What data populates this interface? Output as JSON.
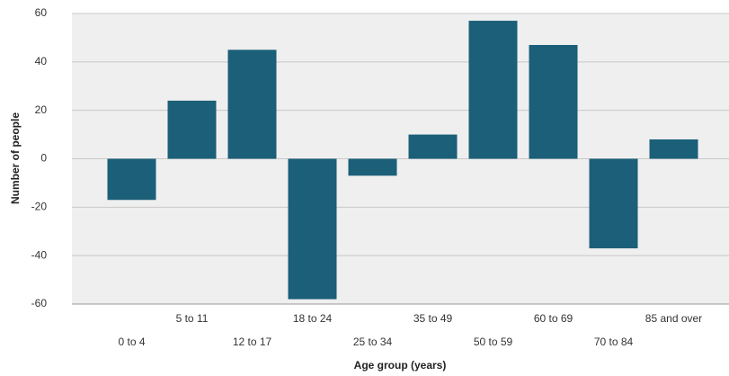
{
  "chart_data": {
    "type": "bar",
    "x_label": "Age group (years)",
    "y_label": "Number of people",
    "categories": [
      "0 to 4",
      "5 to 11",
      "12 to 17",
      "18 to 24",
      "25 to 34",
      "35 to 49",
      "50 to 59",
      "60 to 69",
      "70 to 84",
      "85 and over"
    ],
    "values": [
      -17,
      24,
      45,
      -58,
      -7,
      10,
      57,
      47,
      -37,
      8
    ],
    "color": "#1b5f78",
    "ylim": [
      -60,
      60
    ],
    "yticks": [
      -60,
      -40,
      -20,
      0,
      20,
      40,
      60
    ],
    "grid": true
  }
}
